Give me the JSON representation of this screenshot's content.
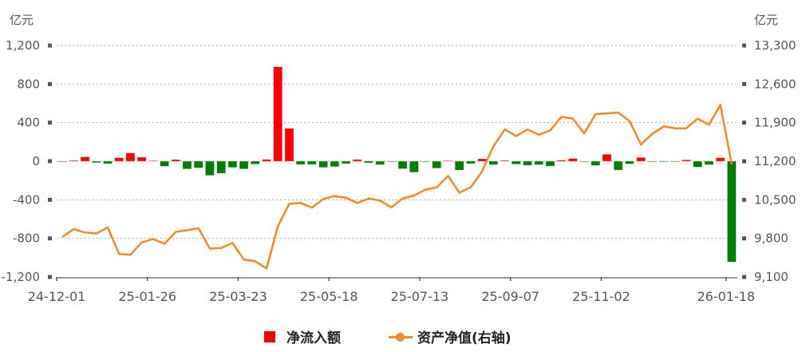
{
  "chart_data": {
    "type": "bar+line",
    "left_unit": "亿元",
    "right_unit": "亿元",
    "left_axis": {
      "min": -1200,
      "max": 1200,
      "ticks": [
        1200,
        800,
        400,
        0,
        -400,
        -800,
        -1200
      ],
      "tick_labels": [
        "1,200",
        "800",
        "400",
        "0",
        "-400",
        "-800",
        "-1,200"
      ]
    },
    "right_axis": {
      "min": 9100,
      "max": 13300,
      "ticks": [
        13300,
        12600,
        11900,
        11200,
        10500,
        9800,
        9100
      ],
      "tick_labels": [
        "13,300",
        "12,600",
        "11,900",
        "11,200",
        "10,500",
        "9,800",
        "9,100"
      ]
    },
    "grid": true,
    "legend_position": "bottom",
    "x_tick_labels": [
      {
        "index": 0,
        "label": "24-12-01"
      },
      {
        "index": 8,
        "label": "25-01-26"
      },
      {
        "index": 16,
        "label": "25-03-23"
      },
      {
        "index": 24,
        "label": "25-05-18"
      },
      {
        "index": 32,
        "label": "25-07-13"
      },
      {
        "index": 40,
        "label": "25-09-07"
      },
      {
        "index": 48,
        "label": "25-11-02"
      },
      {
        "index": 59,
        "label": "26-01-18"
      }
    ],
    "categories": [
      "24-12-01",
      "24-12-08",
      "24-12-15",
      "24-12-22",
      "24-12-29",
      "25-01-05",
      "25-01-12",
      "25-01-19",
      "25-01-26",
      "25-02-02",
      "25-02-09",
      "25-02-16",
      "25-02-23",
      "25-03-02",
      "25-03-09",
      "25-03-16",
      "25-03-23",
      "25-03-30",
      "25-04-06",
      "25-04-13",
      "25-04-20",
      "25-04-27",
      "25-05-04",
      "25-05-11",
      "25-05-18",
      "25-05-25",
      "25-06-01",
      "25-06-08",
      "25-06-15",
      "25-06-22",
      "25-06-29",
      "25-07-06",
      "25-07-13",
      "25-07-20",
      "25-07-27",
      "25-08-03",
      "25-08-10",
      "25-08-17",
      "25-08-24",
      "25-08-31",
      "25-09-07",
      "25-09-14",
      "25-09-21",
      "25-09-28",
      "25-10-05",
      "25-10-12",
      "25-10-19",
      "25-10-26",
      "25-11-02",
      "25-11-09",
      "25-11-16",
      "25-11-23",
      "25-11-30",
      "25-12-07",
      "25-12-14",
      "25-12-21",
      "25-12-28",
      "26-01-04",
      "26-01-11",
      "26-01-18"
    ],
    "series": [
      {
        "name": "净流入额",
        "type": "bar",
        "axis": "left",
        "color_positive": "#ff0000",
        "color_negative": "#008000",
        "values": [
          -5,
          8,
          45,
          -14,
          -25,
          36,
          86,
          42,
          6,
          -53,
          17,
          -80,
          -69,
          -147,
          -125,
          -64,
          -80,
          -30,
          19,
          980,
          340,
          -33,
          -33,
          -64,
          -56,
          -25,
          17,
          -17,
          -36,
          -3,
          -78,
          -114,
          -3,
          -72,
          5,
          -92,
          -25,
          25,
          -36,
          8,
          -30,
          -42,
          -36,
          -50,
          11,
          28,
          -5,
          -44,
          72,
          -92,
          -28,
          39,
          -3,
          -3,
          -3,
          14,
          -61,
          -36,
          36,
          -1045
        ]
      },
      {
        "name": "资产净值(右轴)",
        "type": "line",
        "axis": "right",
        "color": "#f7881f",
        "values": [
          9824,
          9970,
          9907,
          9888,
          9999,
          9517,
          9503,
          9727,
          9790,
          9703,
          9917,
          9950,
          9984,
          9615,
          9625,
          9717,
          9415,
          9386,
          9255,
          10019,
          10427,
          10442,
          10359,
          10515,
          10567,
          10538,
          10442,
          10524,
          10486,
          10363,
          10524,
          10577,
          10684,
          10728,
          10932,
          10631,
          10728,
          11015,
          11471,
          11777,
          11656,
          11777,
          11681,
          11758,
          12006,
          11973,
          11705,
          12054,
          12069,
          12084,
          11929,
          11506,
          11696,
          11831,
          11798,
          11798,
          11973,
          11860,
          12225,
          11146
        ]
      }
    ]
  }
}
